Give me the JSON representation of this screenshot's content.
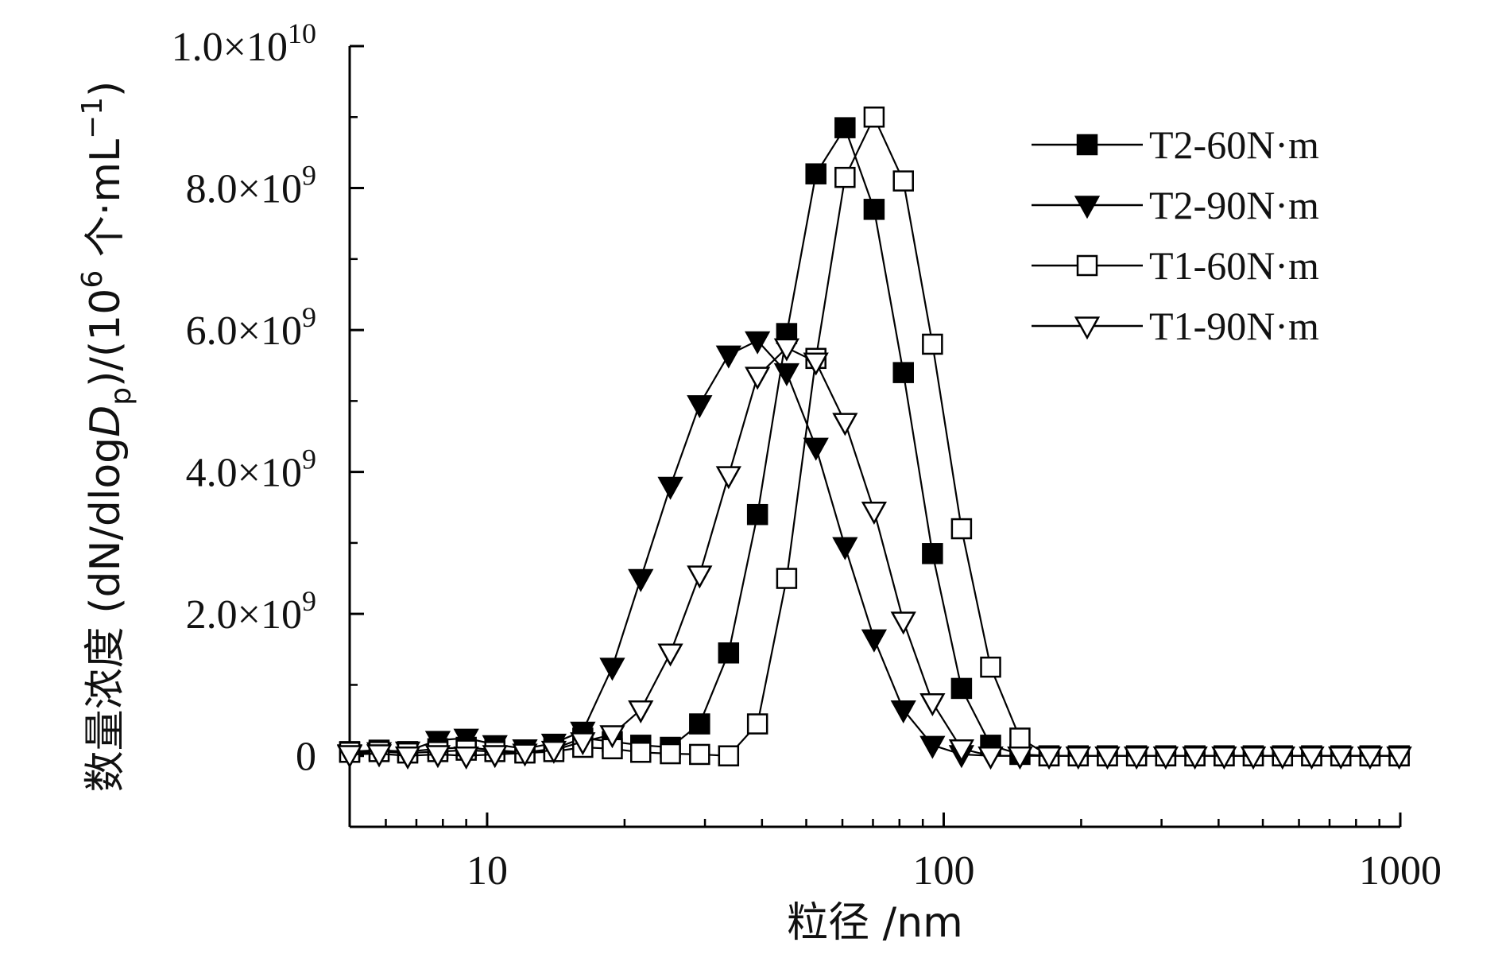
{
  "chart_data": {
    "type": "line",
    "xscale": "log",
    "xlim": [
      5,
      1000
    ],
    "ylim": [
      -1000000000,
      10000000000
    ],
    "grid": false,
    "legend_position": "top-right",
    "xlabel": "粒径 /nm",
    "ylabel_parts": {
      "prefix": "数量浓度 (dN/dlog",
      "sym": "D",
      "sub": "p",
      "mid": ")/(10",
      "sup6": "6",
      "post": " 个·mL",
      "sup": "−1",
      "end": ")"
    },
    "x_ticks": [
      {
        "value": 10,
        "label": "10"
      },
      {
        "value": 100,
        "label": "100"
      },
      {
        "value": 1000,
        "label": "1000"
      }
    ],
    "y_ticks": [
      {
        "value": 0,
        "mant": "0",
        "exp": ""
      },
      {
        "value": 2000000000,
        "mant": "2.0×10",
        "exp": "9"
      },
      {
        "value": 4000000000,
        "mant": "4.0×10",
        "exp": "9"
      },
      {
        "value": 6000000000,
        "mant": "6.0×10",
        "exp": "9"
      },
      {
        "value": 8000000000,
        "mant": "8.0×10",
        "exp": "9"
      },
      {
        "value": 10000000000,
        "mant": "1.0×10",
        "exp": "10"
      }
    ],
    "x": [
      5.0,
      5.8,
      6.7,
      7.8,
      9.0,
      10.4,
      12.1,
      14.0,
      16.2,
      18.8,
      21.7,
      25.2,
      29.2,
      33.8,
      39.1,
      45.3,
      52.5,
      60.8,
      70.4,
      81.6,
      94.5,
      109.4,
      126.7,
      146.9,
      170.1,
      197.1,
      228.3,
      264.5,
      306.4,
      355.0,
      411.4,
      476.5,
      552.1,
      639.6,
      741.0,
      858.5,
      994.4
    ],
    "series": [
      {
        "name": "T2-60N·m",
        "marker": "square-filled",
        "values": [
          60000000,
          80000000,
          60000000,
          100000000,
          120000000,
          80000000,
          50000000,
          100000000,
          250000000,
          200000000,
          150000000,
          120000000,
          450000000,
          1450000000,
          3400000000,
          5950000000,
          8200000000,
          8850000000,
          7700000000,
          5400000000,
          2850000000,
          950000000,
          150000000,
          20000000,
          0,
          0,
          0,
          0,
          0,
          0,
          0,
          0,
          0,
          0,
          0,
          0,
          0
        ]
      },
      {
        "name": "T2-90N·m",
        "marker": "triangle-down-filled",
        "values": [
          30000000,
          60000000,
          70000000,
          220000000,
          250000000,
          160000000,
          100000000,
          180000000,
          350000000,
          1250000000,
          2500000000,
          3800000000,
          4950000000,
          5650000000,
          5850000000,
          5400000000,
          4350000000,
          2950000000,
          1650000000,
          650000000,
          150000000,
          20000000,
          0,
          0,
          0,
          0,
          0,
          0,
          0,
          0,
          0,
          0,
          0,
          0,
          0,
          0,
          0
        ]
      },
      {
        "name": "T1-60N·m",
        "marker": "square-open",
        "values": [
          50000000,
          60000000,
          40000000,
          60000000,
          80000000,
          60000000,
          40000000,
          60000000,
          120000000,
          100000000,
          50000000,
          30000000,
          20000000,
          0,
          450000000,
          2500000000,
          5600000000,
          8150000000,
          9000000000,
          8100000000,
          5800000000,
          3200000000,
          1250000000,
          250000000,
          0,
          0,
          0,
          0,
          0,
          0,
          0,
          0,
          0,
          0,
          0,
          0,
          0
        ]
      },
      {
        "name": "T1-90N·m",
        "marker": "triangle-down-open",
        "values": [
          20000000,
          30000000,
          0,
          20000000,
          0,
          20000000,
          40000000,
          80000000,
          200000000,
          300000000,
          650000000,
          1450000000,
          2550000000,
          3950000000,
          5350000000,
          5750000000,
          5550000000,
          4700000000,
          3450000000,
          1900000000,
          750000000,
          100000000,
          0,
          0,
          0,
          0,
          0,
          0,
          0,
          0,
          0,
          0,
          0,
          0,
          0,
          0,
          0
        ]
      }
    ]
  }
}
